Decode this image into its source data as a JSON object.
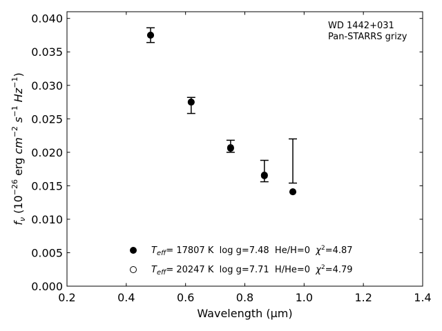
{
  "chart_data": {
    "type": "scatter",
    "title": "",
    "xlabel": "Wavelength (μm)",
    "ylabel": {
      "f": "f",
      "nu": "ν",
      "pre": " (10",
      "exp1": "−26",
      "mid1": " erg ",
      "cm": "cm",
      "exp2": "−2",
      "s": "s",
      "exp3": "−1",
      "hz": "Hz",
      "exp4": "−1",
      "post": ")"
    },
    "xlim": [
      0.2,
      1.4
    ],
    "ylim": [
      0.0,
      0.041
    ],
    "x_ticks": [
      "0.2",
      "0.4",
      "0.6",
      "0.8",
      "1.0",
      "1.2",
      "1.4"
    ],
    "y_ticks": [
      "0.000",
      "0.005",
      "0.010",
      "0.015",
      "0.020",
      "0.025",
      "0.030",
      "0.035",
      "0.040"
    ],
    "grid": false,
    "annotation": [
      "WD 1442+031",
      "Pan-STARRS grizy"
    ],
    "observed": {
      "x": [
        0.482,
        0.619,
        0.752,
        0.866,
        0.962
      ],
      "y": [
        0.0375,
        0.027,
        0.0209,
        0.0172,
        0.0187
      ],
      "err": [
        0.0011,
        0.0012,
        0.0009,
        0.0016,
        0.0033
      ]
    },
    "series": [
      {
        "marker": "filled-circle",
        "x": [
          0.482,
          0.619,
          0.752,
          0.866,
          0.962
        ],
        "y": [
          0.0375,
          0.0275,
          0.0206,
          0.0165,
          0.0141
        ],
        "legend": {
          "teff_T": "T",
          "teff_sub": "eff",
          "text": "= 17807 K  log g=7.48  He/H=0  ",
          "chi": "χ",
          "chi_exp": "2",
          "chi_val": "=4.87"
        }
      },
      {
        "marker": "open-circle",
        "x": [
          0.482,
          0.619,
          0.752,
          0.866,
          0.962
        ],
        "y": [
          0.0375,
          0.0275,
          0.0207,
          0.0166,
          0.0141
        ],
        "legend": {
          "teff_T": "T",
          "teff_sub": "eff",
          "text": "= 20247 K  log g=7.71  H/He=0  ",
          "chi": "χ",
          "chi_exp": "2",
          "chi_val": "=4.79"
        }
      }
    ],
    "legend_position": "lower-center",
    "colors": {
      "axes": "#000000",
      "marker": "#000000",
      "background": "#ffffff"
    }
  }
}
